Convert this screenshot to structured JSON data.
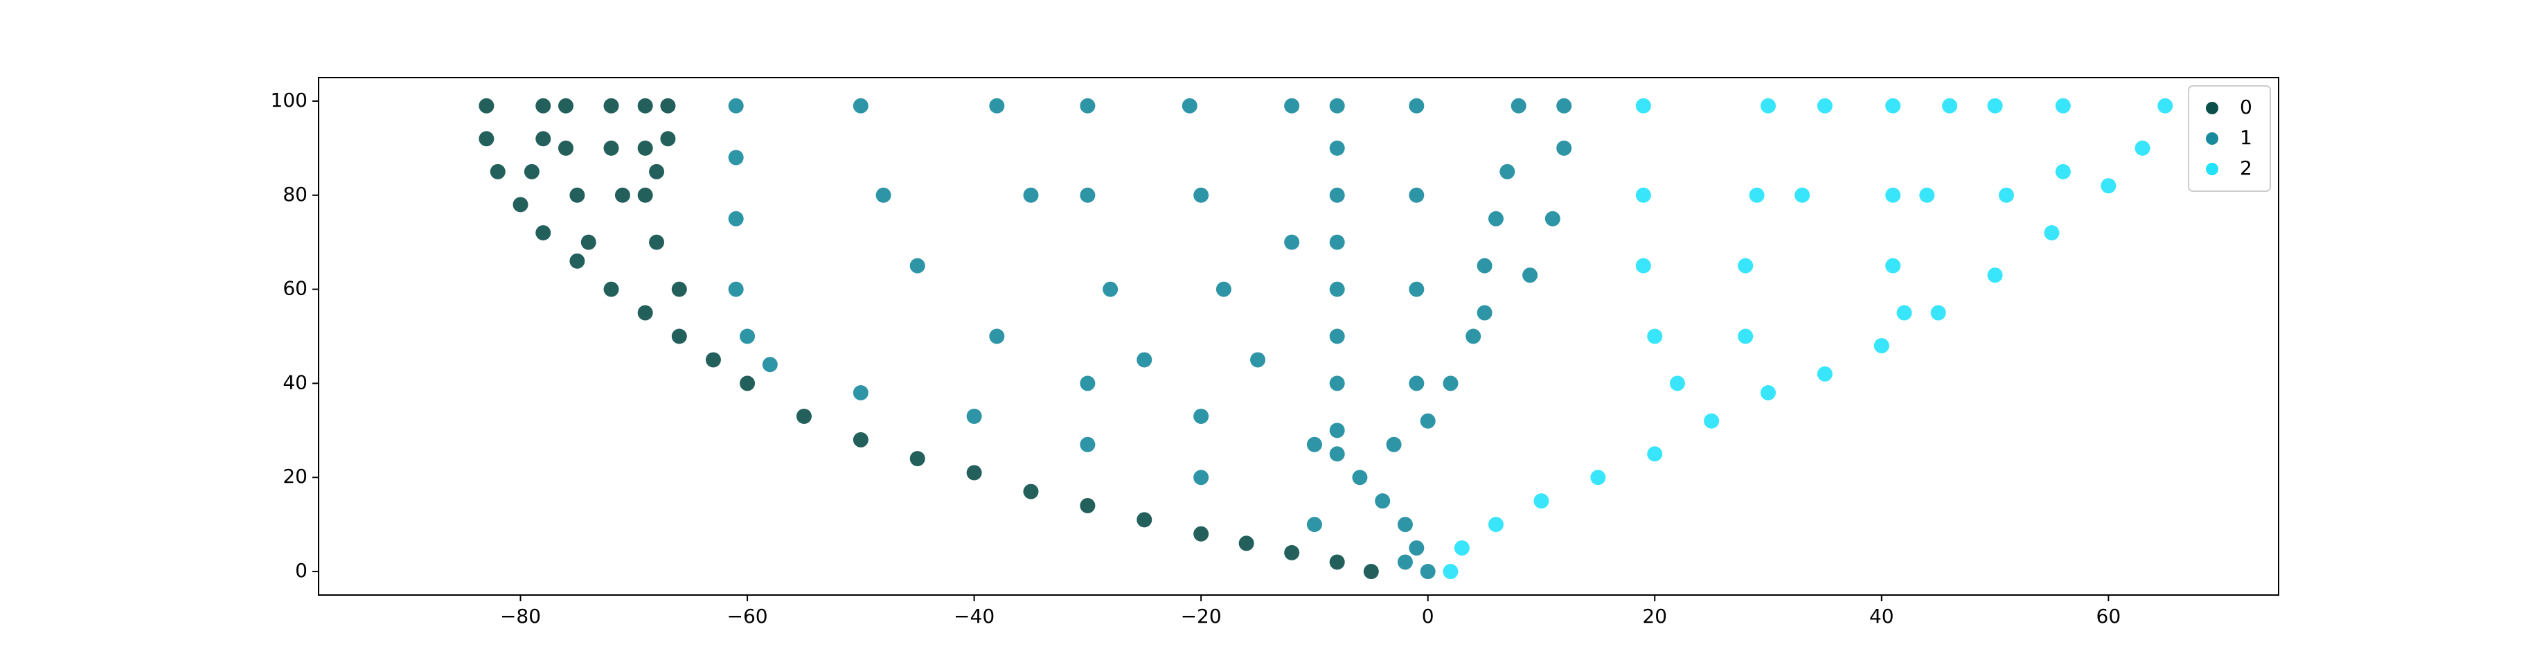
{
  "chart_data": {
    "type": "scatter",
    "xlim": [
      -97.8,
      75
    ],
    "ylim": [
      -5,
      105
    ],
    "xticks": [
      {
        "value": -80,
        "label": "−80"
      },
      {
        "value": -60,
        "label": "−60"
      },
      {
        "value": -40,
        "label": "−40"
      },
      {
        "value": -20,
        "label": "−20"
      },
      0,
      20,
      40,
      60
    ],
    "yticks": [
      0,
      20,
      40,
      60,
      80,
      100
    ],
    "legend": "upper right",
    "series": [
      {
        "name": "0",
        "color": "#0b4f4a",
        "x": [
          -5,
          -8,
          -12,
          -16,
          -20,
          -25,
          -30,
          -35,
          -40,
          -45,
          -50,
          -55,
          -60,
          -63,
          -66,
          -69,
          -72,
          -75,
          -78,
          -80,
          -82,
          -83,
          -83,
          -74,
          -75,
          -76,
          -76,
          -66,
          -68,
          -69,
          -69,
          -69,
          -79,
          -78,
          -78,
          -68,
          -67,
          -67,
          -71,
          -72,
          -72
        ],
        "y": [
          0,
          2,
          4,
          6,
          8,
          11,
          14,
          17,
          21,
          24,
          28,
          33,
          40,
          45,
          50,
          55,
          60,
          66,
          72,
          78,
          85,
          92,
          99,
          70,
          80,
          90,
          99,
          60,
          70,
          80,
          90,
          99,
          85,
          92,
          99,
          85,
          92,
          99,
          80,
          90,
          99
        ]
      },
      {
        "name": "1",
        "color": "#178a9c",
        "x": [
          0,
          -1,
          -2,
          -4,
          -6,
          -8,
          -8,
          -8,
          -8,
          -8,
          -8,
          -8,
          -8,
          -8,
          -3,
          0,
          2,
          4,
          5,
          5,
          6,
          7,
          8,
          -1,
          -1,
          -1,
          -1,
          9,
          11,
          12,
          12,
          -10,
          -20,
          -30,
          -38,
          -45,
          -48,
          -50,
          -25,
          -28,
          -30,
          -30,
          -35,
          -38,
          -15,
          -18,
          -20,
          -21,
          -12,
          -12,
          -2,
          -10,
          -20,
          -30,
          -40,
          -50,
          -58,
          -60,
          -61,
          -61,
          -61,
          -61
        ],
        "y": [
          0,
          5,
          10,
          15,
          20,
          25,
          30,
          40,
          50,
          60,
          70,
          80,
          90,
          99,
          27,
          32,
          40,
          50,
          55,
          65,
          75,
          85,
          99,
          40,
          60,
          80,
          99,
          63,
          75,
          90,
          99,
          27,
          33,
          40,
          50,
          65,
          80,
          99,
          45,
          60,
          80,
          99,
          80,
          99,
          45,
          60,
          80,
          99,
          70,
          99,
          2,
          10,
          20,
          27,
          33,
          38,
          44,
          50,
          60,
          75,
          88,
          99
        ]
      },
      {
        "name": "2",
        "color": "#22e2fa",
        "x": [
          2,
          3,
          6,
          10,
          15,
          20,
          25,
          30,
          35,
          40,
          45,
          50,
          55,
          60,
          63,
          65,
          22,
          20,
          19,
          19,
          19,
          28,
          28,
          29,
          30,
          33,
          35,
          42,
          41,
          41,
          41,
          44,
          46,
          51,
          50,
          56,
          56
        ],
        "y": [
          0,
          5,
          10,
          15,
          20,
          25,
          32,
          38,
          42,
          48,
          55,
          63,
          72,
          82,
          90,
          99,
          40,
          50,
          65,
          80,
          99,
          50,
          65,
          80,
          99,
          80,
          99,
          55,
          65,
          80,
          99,
          80,
          99,
          80,
          99,
          85,
          99
        ]
      }
    ]
  }
}
